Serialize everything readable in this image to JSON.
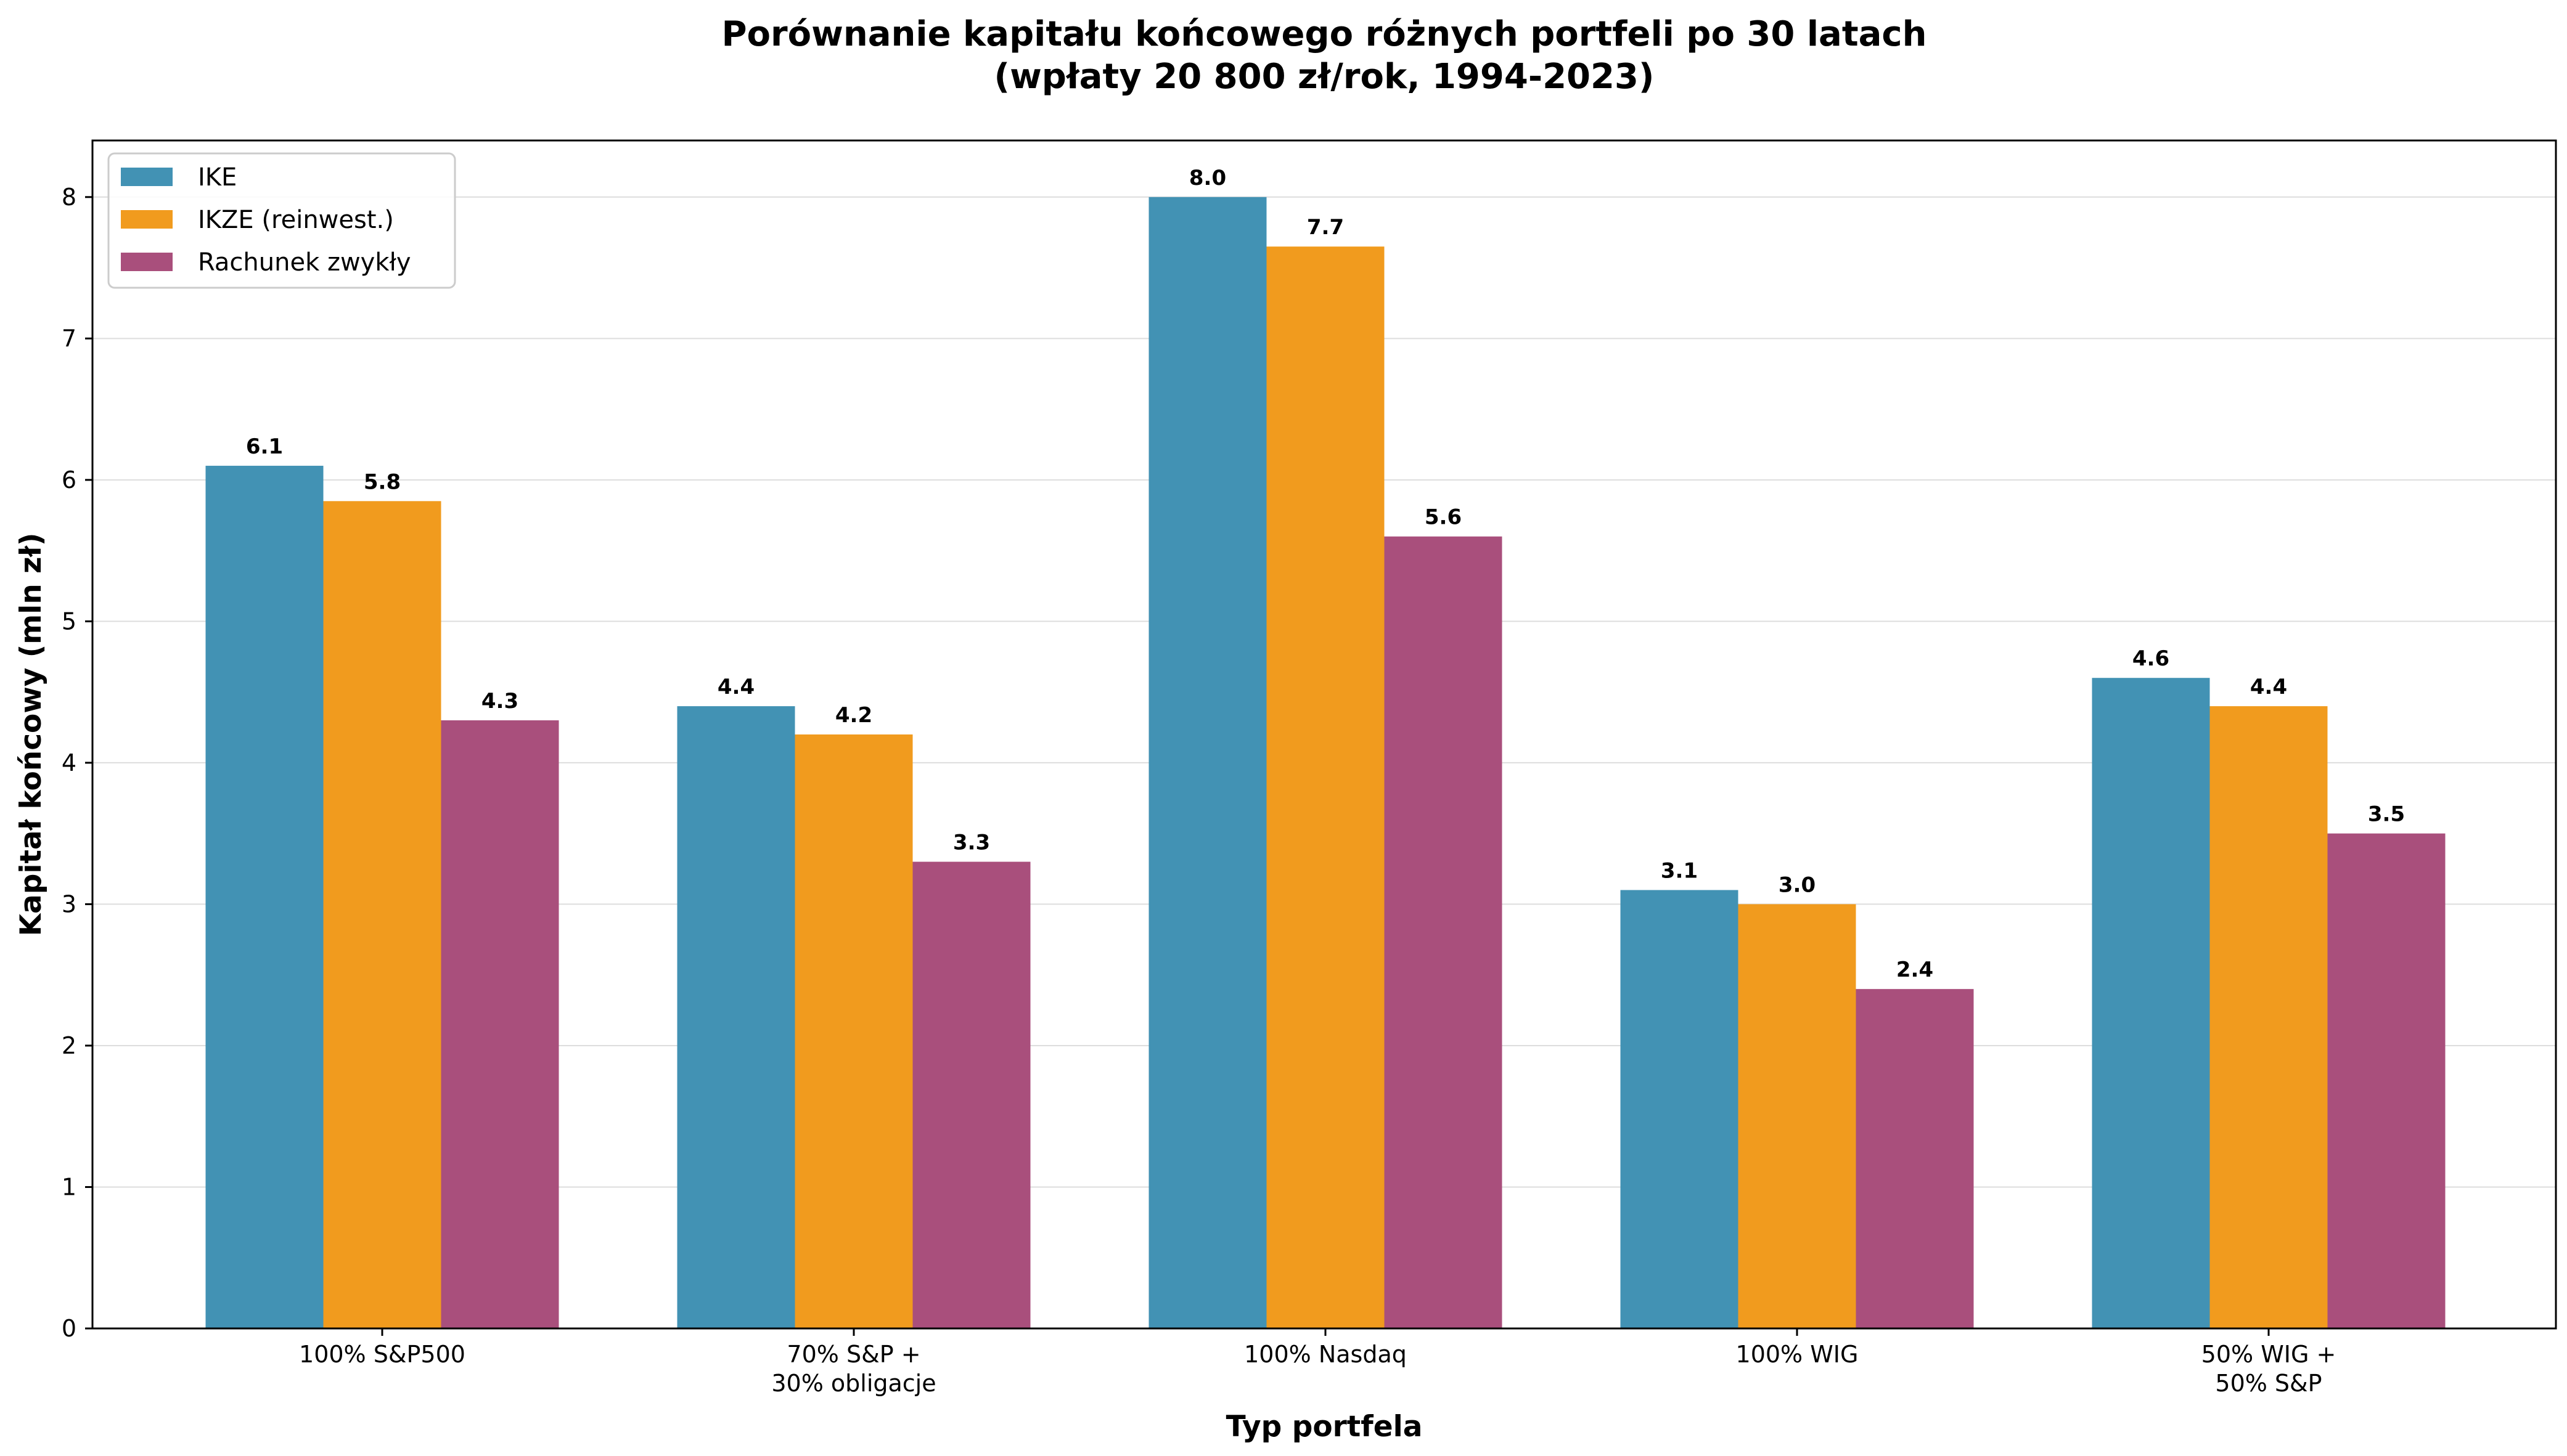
{
  "chart_data": {
    "type": "bar",
    "title": "Porównanie kapitału końcowego różnych portfeli po 30 latach",
    "subtitle": "(wpłaty 20 800 zł/rok, 1994-2023)",
    "xlabel": "Typ portfela",
    "ylabel": "Kapitał końcowy (mln zł)",
    "ylim": [
      0,
      8.4
    ],
    "yticks": [
      0,
      1,
      2,
      3,
      4,
      5,
      6,
      7,
      8
    ],
    "grid": true,
    "legend_position": "top-left",
    "categories": [
      [
        "100% S&P500"
      ],
      [
        "70% S&P +",
        "30% obligacje"
      ],
      [
        "100% Nasdaq"
      ],
      [
        "100% WIG"
      ],
      [
        "50% WIG +",
        "50% S&P"
      ]
    ],
    "series": [
      {
        "name": "IKE",
        "color": "#4292B4",
        "values": [
          6.1,
          4.4,
          8.0,
          3.1,
          4.6
        ],
        "labels": [
          "6.1",
          "4.4",
          "8.0",
          "3.1",
          "4.6"
        ]
      },
      {
        "name": "IKZE (reinwest.)",
        "color": "#F19B1E",
        "values": [
          5.85,
          4.2,
          7.65,
          3.0,
          4.4
        ],
        "labels": [
          "5.8",
          "4.2",
          "7.7",
          "3.0",
          "4.4"
        ]
      },
      {
        "name": "Rachunek zwykły",
        "color": "#A94F7C",
        "values": [
          4.3,
          3.3,
          5.6,
          2.4,
          3.5
        ],
        "labels": [
          "4.3",
          "3.3",
          "5.6",
          "2.4",
          "3.5"
        ]
      }
    ]
  }
}
